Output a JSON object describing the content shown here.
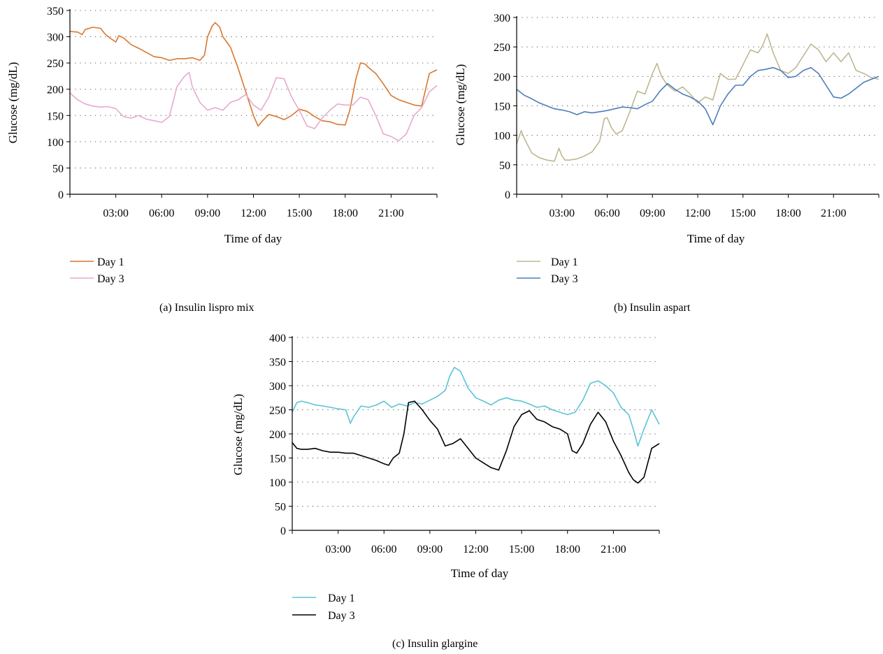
{
  "colors": {
    "a_day1": "#D9772E",
    "a_day3": "#E8A9CF",
    "b_day1": "#BFB793",
    "b_day3": "#4D7DBA",
    "c_day1": "#5CC3D6",
    "c_day3": "#000000",
    "grid": "#555555",
    "axis": "#000000"
  },
  "chart_data": [
    {
      "type": "line",
      "caption": "(a)  Insulin lispro mix",
      "xlabel": "Time of day",
      "ylabel": "Glucose (mg/dL)",
      "xlim": [
        0,
        24
      ],
      "ylim": [
        0,
        350
      ],
      "yticks": [
        0,
        50,
        100,
        150,
        200,
        250,
        300,
        350
      ],
      "xtick_values": [
        3,
        6,
        9,
        12,
        15,
        18,
        21
      ],
      "xtick_labels": [
        "03:00",
        "06:00",
        "09:00",
        "12:00",
        "15:00",
        "18:00",
        "21:00"
      ],
      "grid": "horizontal dotted",
      "legend_position": "bottom-left",
      "series": [
        {
          "name": "Day 1",
          "color_key": "a_day1",
          "x": [
            0,
            0.5,
            0.8,
            1.0,
            1.5,
            2.0,
            2.3,
            2.6,
            3.0,
            3.2,
            3.5,
            4.0,
            4.5,
            5.0,
            5.5,
            6.0,
            6.5,
            7.0,
            7.5,
            8.0,
            8.5,
            8.8,
            9.0,
            9.3,
            9.5,
            9.8,
            10.0,
            10.5,
            11.0,
            11.5,
            12.0,
            12.3,
            12.6,
            13.0,
            13.5,
            14.0,
            14.5,
            15.0,
            15.5,
            16.0,
            16.5,
            17.0,
            17.5,
            18.0,
            18.3,
            18.7,
            19.0,
            19.3,
            19.5,
            20.0,
            20.5,
            21.0,
            21.5,
            22.0,
            22.5,
            23.0,
            23.5,
            24.0
          ],
          "y": [
            310,
            309,
            304,
            314,
            318,
            316,
            305,
            298,
            290,
            302,
            298,
            285,
            278,
            270,
            262,
            260,
            255,
            258,
            258,
            260,
            255,
            265,
            300,
            320,
            327,
            318,
            300,
            280,
            240,
            195,
            150,
            130,
            140,
            152,
            148,
            142,
            150,
            162,
            158,
            148,
            140,
            138,
            133,
            132,
            160,
            220,
            250,
            248,
            242,
            230,
            210,
            188,
            180,
            175,
            170,
            168,
            230,
            237
          ]
        },
        {
          "name": "Day 3",
          "color_key": "a_day3",
          "x": [
            0,
            0.5,
            1.0,
            1.5,
            2.0,
            2.5,
            3.0,
            3.5,
            4.0,
            4.5,
            5.0,
            5.5,
            6.0,
            6.5,
            7.0,
            7.5,
            7.8,
            8.0,
            8.5,
            9.0,
            9.5,
            10.0,
            10.5,
            11.0,
            11.5,
            12.0,
            12.5,
            13.0,
            13.5,
            14.0,
            14.5,
            15.0,
            15.5,
            16.0,
            16.5,
            17.0,
            17.5,
            18.0,
            18.5,
            19.0,
            19.5,
            20.0,
            20.5,
            21.0,
            21.5,
            22.0,
            22.5,
            23.0,
            23.5,
            24.0
          ],
          "y": [
            193,
            180,
            172,
            168,
            166,
            167,
            163,
            148,
            145,
            150,
            143,
            140,
            137,
            148,
            205,
            225,
            232,
            205,
            175,
            160,
            165,
            160,
            175,
            180,
            190,
            170,
            160,
            185,
            222,
            220,
            185,
            160,
            130,
            125,
            145,
            160,
            172,
            170,
            170,
            185,
            180,
            150,
            115,
            110,
            102,
            115,
            150,
            165,
            195,
            207
          ]
        }
      ]
    },
    {
      "type": "line",
      "caption": "(b)  Insulin aspart",
      "xlabel": "Time of day",
      "ylabel": "Glucose (mg/dL)",
      "xlim": [
        0,
        24
      ],
      "ylim": [
        0,
        300
      ],
      "yticks": [
        0,
        50,
        100,
        150,
        200,
        250,
        300
      ],
      "xtick_values": [
        3,
        6,
        9,
        12,
        15,
        18,
        21
      ],
      "xtick_labels": [
        "03:00",
        "06:00",
        "09:00",
        "12:00",
        "15:00",
        "18:00",
        "21:00"
      ],
      "grid": "horizontal dotted",
      "legend_position": "bottom-left",
      "series": [
        {
          "name": "Day 1",
          "color_key": "b_day1",
          "x": [
            0,
            0.3,
            0.5,
            0.8,
            1.0,
            1.5,
            2.0,
            2.5,
            2.8,
            3.0,
            3.2,
            3.5,
            4.0,
            4.5,
            5.0,
            5.5,
            5.8,
            6.0,
            6.3,
            6.6,
            7.0,
            7.5,
            8.0,
            8.5,
            9.0,
            9.3,
            9.6,
            10.0,
            10.5,
            11.0,
            11.5,
            12.0,
            12.5,
            13.0,
            13.5,
            14.0,
            14.5,
            15.0,
            15.5,
            16.0,
            16.3,
            16.6,
            17.0,
            17.5,
            18.0,
            18.5,
            19.0,
            19.5,
            20.0,
            20.5,
            21.0,
            21.5,
            22.0,
            22.5,
            23.0,
            23.5,
            24.0
          ],
          "y": [
            85,
            108,
            95,
            80,
            70,
            62,
            58,
            56,
            78,
            65,
            58,
            58,
            60,
            65,
            72,
            90,
            128,
            130,
            112,
            102,
            108,
            140,
            175,
            170,
            205,
            222,
            200,
            185,
            175,
            182,
            170,
            155,
            165,
            160,
            205,
            195,
            195,
            220,
            245,
            240,
            252,
            272,
            240,
            210,
            205,
            215,
            235,
            255,
            245,
            225,
            240,
            225,
            240,
            210,
            205,
            198,
            195
          ]
        },
        {
          "name": "Day 3",
          "color_key": "b_day3",
          "x": [
            0,
            0.5,
            1.0,
            1.5,
            2.0,
            2.5,
            3.0,
            3.5,
            4.0,
            4.5,
            5.0,
            5.5,
            6.0,
            6.5,
            7.0,
            7.5,
            8.0,
            8.5,
            9.0,
            9.5,
            10.0,
            10.5,
            11.0,
            11.5,
            12.0,
            12.5,
            13.0,
            13.5,
            14.0,
            14.5,
            15.0,
            15.5,
            16.0,
            16.5,
            17.0,
            17.5,
            18.0,
            18.5,
            19.0,
            19.5,
            20.0,
            20.5,
            21.0,
            21.5,
            22.0,
            22.5,
            23.0,
            23.5,
            24.0
          ],
          "y": [
            178,
            168,
            162,
            155,
            150,
            145,
            143,
            140,
            135,
            140,
            138,
            140,
            142,
            145,
            148,
            147,
            145,
            152,
            158,
            175,
            188,
            178,
            170,
            165,
            158,
            145,
            118,
            150,
            170,
            185,
            185,
            200,
            210,
            212,
            215,
            210,
            198,
            200,
            210,
            215,
            205,
            185,
            165,
            163,
            170,
            180,
            190,
            195,
            200
          ]
        }
      ]
    },
    {
      "type": "line",
      "caption": "(c)  Insulin glargine",
      "xlabel": "Time of day",
      "ylabel": "Glucose (mg/dL)",
      "xlim": [
        0,
        24
      ],
      "ylim": [
        0,
        400
      ],
      "yticks": [
        0,
        50,
        100,
        150,
        200,
        250,
        300,
        350,
        400
      ],
      "xtick_values": [
        3,
        6,
        9,
        12,
        15,
        18,
        21
      ],
      "xtick_labels": [
        "03:00",
        "06:00",
        "09:00",
        "12:00",
        "15:00",
        "18:00",
        "21:00"
      ],
      "grid": "horizontal dotted",
      "legend_position": "bottom-left",
      "series": [
        {
          "name": "Day 1",
          "color_key": "c_day1",
          "x": [
            0,
            0.3,
            0.6,
            1.0,
            1.5,
            2.0,
            2.5,
            3.0,
            3.5,
            3.8,
            4.0,
            4.5,
            5.0,
            5.5,
            6.0,
            6.5,
            7.0,
            7.5,
            8.0,
            8.5,
            9.0,
            9.5,
            10.0,
            10.3,
            10.6,
            11.0,
            11.5,
            12.0,
            12.5,
            13.0,
            13.5,
            14.0,
            14.5,
            15.0,
            15.5,
            16.0,
            16.5,
            17.0,
            17.5,
            18.0,
            18.5,
            19.0,
            19.5,
            20.0,
            20.5,
            21.0,
            21.5,
            22.0,
            22.3,
            22.6,
            23.0,
            23.5,
            24.0
          ],
          "y": [
            245,
            265,
            268,
            265,
            260,
            258,
            255,
            252,
            250,
            222,
            235,
            258,
            255,
            260,
            268,
            255,
            262,
            258,
            265,
            262,
            270,
            278,
            290,
            320,
            338,
            330,
            295,
            275,
            268,
            260,
            270,
            275,
            270,
            268,
            262,
            255,
            258,
            250,
            245,
            240,
            245,
            270,
            305,
            310,
            300,
            285,
            255,
            240,
            210,
            175,
            210,
            250,
            220
          ]
        },
        {
          "name": "Day 3",
          "color_key": "c_day3",
          "x": [
            0,
            0.3,
            0.6,
            1.0,
            1.5,
            2.0,
            2.5,
            3.0,
            3.5,
            4.0,
            4.5,
            5.0,
            5.5,
            6.0,
            6.3,
            6.6,
            7.0,
            7.3,
            7.6,
            8.0,
            8.5,
            9.0,
            9.5,
            10.0,
            10.5,
            11.0,
            11.5,
            12.0,
            12.5,
            13.0,
            13.5,
            14.0,
            14.5,
            15.0,
            15.5,
            16.0,
            16.5,
            17.0,
            17.5,
            18.0,
            18.3,
            18.6,
            19.0,
            19.5,
            20.0,
            20.5,
            21.0,
            21.5,
            22.0,
            22.3,
            22.6,
            23.0,
            23.5,
            24.0
          ],
          "y": [
            182,
            170,
            168,
            168,
            170,
            165,
            162,
            162,
            160,
            160,
            155,
            150,
            145,
            138,
            135,
            150,
            160,
            200,
            265,
            268,
            250,
            228,
            210,
            175,
            180,
            190,
            170,
            150,
            140,
            130,
            125,
            165,
            215,
            240,
            248,
            230,
            225,
            215,
            210,
            200,
            165,
            160,
            180,
            220,
            245,
            225,
            185,
            155,
            120,
            105,
            98,
            110,
            170,
            180
          ]
        }
      ]
    }
  ]
}
